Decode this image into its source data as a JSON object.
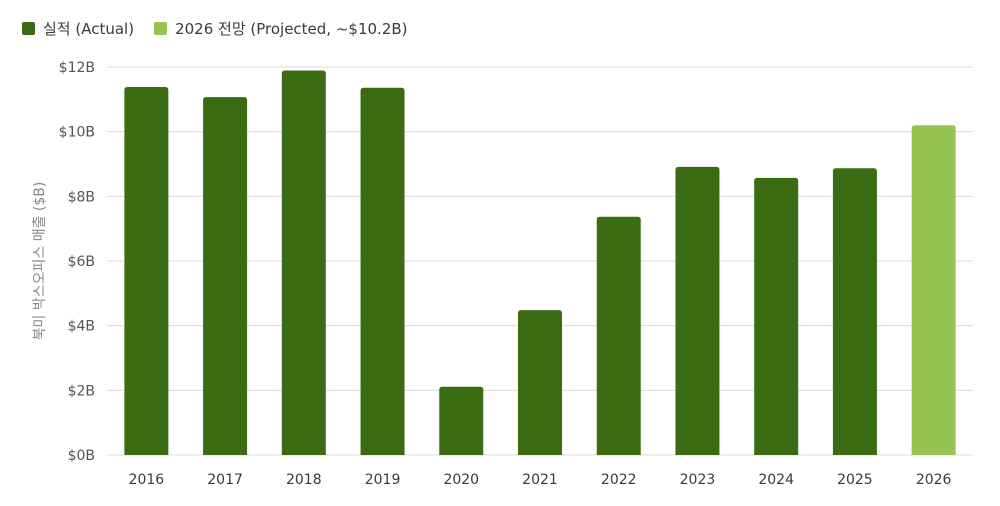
{
  "legend": {
    "actual_label": "실적 (Actual)",
    "projected_label": "2026 전망 (Projected, ~$10.2B)"
  },
  "colors": {
    "actual": "#3b6b12",
    "projected": "#97c353"
  },
  "chart_data": {
    "type": "bar",
    "ylabel": "북미 박스오피스 매출 ($B)",
    "xlabel": "",
    "ylim": [
      0,
      12
    ],
    "yticks": [
      "$0B",
      "$2B",
      "$4B",
      "$6B",
      "$8B",
      "$10B",
      "$12B"
    ],
    "ytick_values": [
      0,
      2,
      4,
      6,
      8,
      10,
      12
    ],
    "grid": true,
    "legend_position": "top-left",
    "categories": [
      "2016",
      "2017",
      "2018",
      "2019",
      "2020",
      "2021",
      "2022",
      "2023",
      "2024",
      "2025",
      "2026"
    ],
    "series": [
      {
        "name": "실적 (Actual)",
        "values": [
          11.38,
          11.07,
          11.89,
          11.36,
          2.11,
          4.48,
          7.37,
          8.91,
          8.57,
          8.87,
          null
        ]
      },
      {
        "name": "2026 전망 (Projected, ~$10.2B)",
        "values": [
          null,
          null,
          null,
          null,
          null,
          null,
          null,
          null,
          null,
          null,
          10.2
        ]
      }
    ]
  }
}
